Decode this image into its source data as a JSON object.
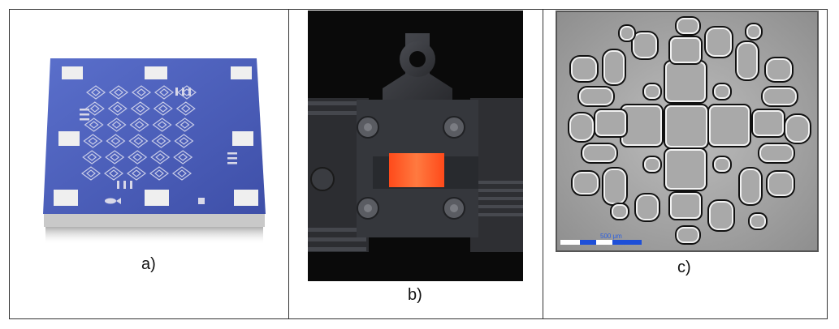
{
  "captions": {
    "a": "a)",
    "b": "b)",
    "c": "c)"
  },
  "scale_bar_text": "500 μm",
  "colors": {
    "chip_blue": "#4a5fb8",
    "pad_white": "#f2f2f2",
    "glow_orange": "#ff5a1e",
    "frame_gray": "#3d3f45"
  }
}
